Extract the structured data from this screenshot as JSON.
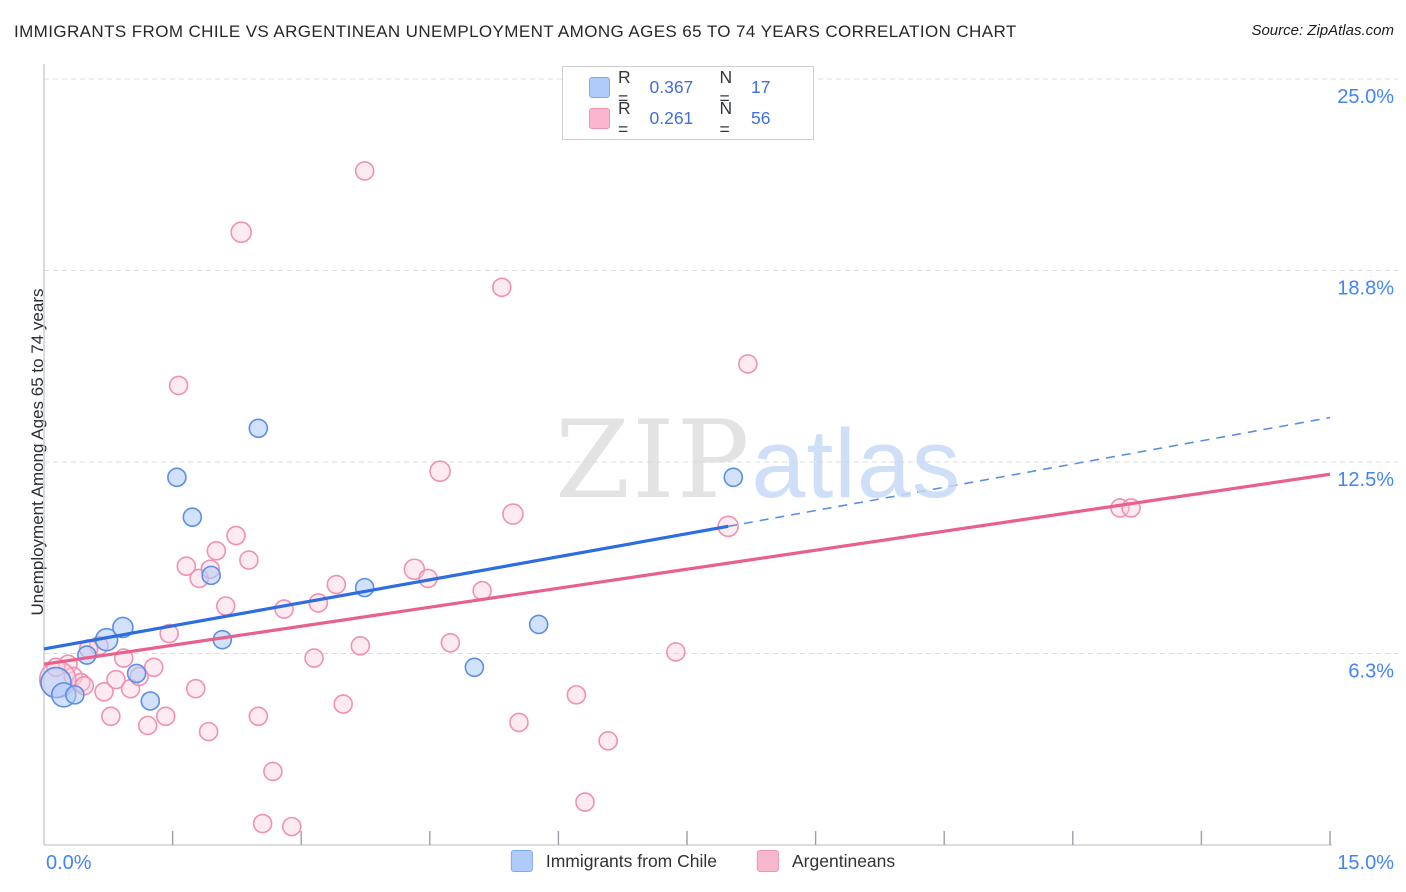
{
  "header": {
    "title": "IMMIGRANTS FROM CHILE VS ARGENTINEAN UNEMPLOYMENT AMONG AGES 65 TO 74 YEARS CORRELATION CHART",
    "source": "Source: ZipAtlas.com"
  },
  "watermark": {
    "zip": "ZIP",
    "atlas": "atlas"
  },
  "legend_box": {
    "rows": [
      {
        "series": "chile",
        "r_label": "R =",
        "r_value": "0.367",
        "n_label": "N =",
        "n_value": "17"
      },
      {
        "series": "argentinean",
        "r_label": "R =",
        "r_value": "0.261",
        "n_label": "N =",
        "n_value": "56"
      }
    ]
  },
  "bottom_legend": {
    "items": [
      {
        "label": "Immigrants from Chile"
      },
      {
        "label": "Argentineans"
      }
    ]
  },
  "axes": {
    "y_label": "Unemployment Among Ages 65 to 74 years",
    "x_left_label": "0.0%",
    "x_right_label": "15.0%",
    "y_gridlines": [
      {
        "value": 25.0,
        "label": "25.0%"
      },
      {
        "value": 18.75,
        "label": "18.8%"
      },
      {
        "value": 12.5,
        "label": "12.5%"
      },
      {
        "value": 6.25,
        "label": "6.3%"
      }
    ],
    "x_tick_values": [
      1.5,
      3,
      4.5,
      6,
      7.5,
      9,
      10.5,
      12,
      13.5,
      15
    ]
  },
  "colors": {
    "blue_fill": "rgba(174,203,250,0.55)",
    "blue_stroke": "#5a8fe8",
    "pink_fill": "rgba(250,205,221,0.40)",
    "pink_stroke": "#f191b2",
    "blue_trend": "#2e6de0",
    "pink_trend": "#e8618c",
    "gridline": "#dcdcdc",
    "axis_line": "#c4c7ca",
    "tick": "#9aa0a6",
    "tick_label": "#4285f4",
    "legend_blue_fill": "#aecbfa",
    "legend_blue_border": "#7baaf7",
    "legend_pink_fill": "#f9b7cf",
    "legend_pink_border": "#f291b5"
  },
  "chart_data": {
    "type": "scatter",
    "xlabel": "Immigrants from Chile (%)",
    "ylabel": "Unemployment Among Ages 65 to 74 years",
    "xlim": [
      0,
      15
    ],
    "ylim": [
      0,
      26.5
    ],
    "grid": "horizontal-dashed",
    "point_format": "[x_pct, y_pct, radius_px]",
    "series": [
      {
        "name": "Immigrants from Chile",
        "R": 0.367,
        "N": 17,
        "points": [
          [
            0.14,
            5.3,
            15
          ],
          [
            0.23,
            4.9,
            12
          ],
          [
            0.36,
            4.9,
            9
          ],
          [
            0.5,
            6.2,
            9
          ],
          [
            0.73,
            6.7,
            11
          ],
          [
            0.92,
            7.1,
            10
          ],
          [
            1.08,
            5.6,
            9
          ],
          [
            1.24,
            4.7,
            9
          ],
          [
            1.55,
            12.0,
            9
          ],
          [
            1.73,
            10.7,
            9
          ],
          [
            1.95,
            8.8,
            9
          ],
          [
            2.08,
            6.7,
            9
          ],
          [
            2.5,
            13.6,
            9
          ],
          [
            3.74,
            8.4,
            9
          ],
          [
            5.02,
            5.8,
            9
          ],
          [
            5.77,
            7.2,
            9
          ],
          [
            8.04,
            12.0,
            9
          ]
        ]
      },
      {
        "name": "Argentineans",
        "R": 0.261,
        "N": 56,
        "points": [
          [
            3.74,
            22.0,
            9
          ],
          [
            2.3,
            20.0,
            10
          ],
          [
            5.34,
            18.2,
            9
          ],
          [
            8.21,
            15.7,
            9
          ],
          [
            1.57,
            15.0,
            9
          ],
          [
            4.62,
            12.2,
            10
          ],
          [
            5.47,
            10.8,
            10
          ],
          [
            7.98,
            10.4,
            10
          ],
          [
            12.55,
            11.0,
            9
          ],
          [
            12.68,
            11.0,
            9
          ],
          [
            2.24,
            10.1,
            9
          ],
          [
            2.01,
            9.6,
            9
          ],
          [
            2.39,
            9.3,
            9
          ],
          [
            1.66,
            9.1,
            9
          ],
          [
            1.81,
            8.7,
            9
          ],
          [
            4.32,
            9.0,
            10
          ],
          [
            4.48,
            8.7,
            9
          ],
          [
            5.11,
            8.3,
            9
          ],
          [
            3.41,
            8.5,
            9
          ],
          [
            3.2,
            7.9,
            9
          ],
          [
            2.8,
            7.7,
            9
          ],
          [
            2.12,
            7.8,
            9
          ],
          [
            1.46,
            6.9,
            9
          ],
          [
            4.74,
            6.6,
            9
          ],
          [
            7.37,
            6.3,
            9
          ],
          [
            3.15,
            6.1,
            9
          ],
          [
            3.69,
            6.5,
            9
          ],
          [
            6.21,
            4.9,
            9
          ],
          [
            5.54,
            4.0,
            9
          ],
          [
            0.64,
            6.5,
            9
          ],
          [
            0.52,
            6.4,
            9
          ],
          [
            0.93,
            6.1,
            9
          ],
          [
            1.28,
            5.8,
            9
          ],
          [
            0.28,
            5.9,
            9
          ],
          [
            0.14,
            5.8,
            9
          ],
          [
            0.34,
            5.5,
            9
          ],
          [
            0.43,
            5.3,
            9
          ],
          [
            0.16,
            5.4,
            18
          ],
          [
            0.47,
            5.2,
            9
          ],
          [
            0.7,
            5.0,
            9
          ],
          [
            0.84,
            5.4,
            9
          ],
          [
            1.01,
            5.1,
            9
          ],
          [
            1.11,
            5.5,
            9
          ],
          [
            1.42,
            4.2,
            9
          ],
          [
            0.78,
            4.2,
            9
          ],
          [
            1.21,
            3.9,
            9
          ],
          [
            1.92,
            3.7,
            9
          ],
          [
            1.77,
            5.1,
            9
          ],
          [
            2.55,
            0.7,
            9
          ],
          [
            2.89,
            0.6,
            9
          ],
          [
            6.58,
            3.4,
            9
          ],
          [
            6.31,
            1.4,
            9
          ],
          [
            3.49,
            4.6,
            9
          ],
          [
            2.67,
            2.4,
            9
          ],
          [
            2.5,
            4.2,
            9
          ],
          [
            1.94,
            9.0,
            9
          ]
        ]
      }
    ],
    "trend_lines": [
      {
        "series": "Immigrants from Chile",
        "style": "solid",
        "x0": 0,
        "y0": 6.4,
        "x1": 7.98,
        "y1": 10.4
      },
      {
        "series": "Immigrants from Chile",
        "style": "dashed",
        "x0": 7.98,
        "y0": 10.4,
        "x1": 15,
        "y1": 13.95
      },
      {
        "series": "Argentineans",
        "style": "solid",
        "x0": 0,
        "y0": 5.9,
        "x1": 15,
        "y1": 12.1
      }
    ]
  }
}
